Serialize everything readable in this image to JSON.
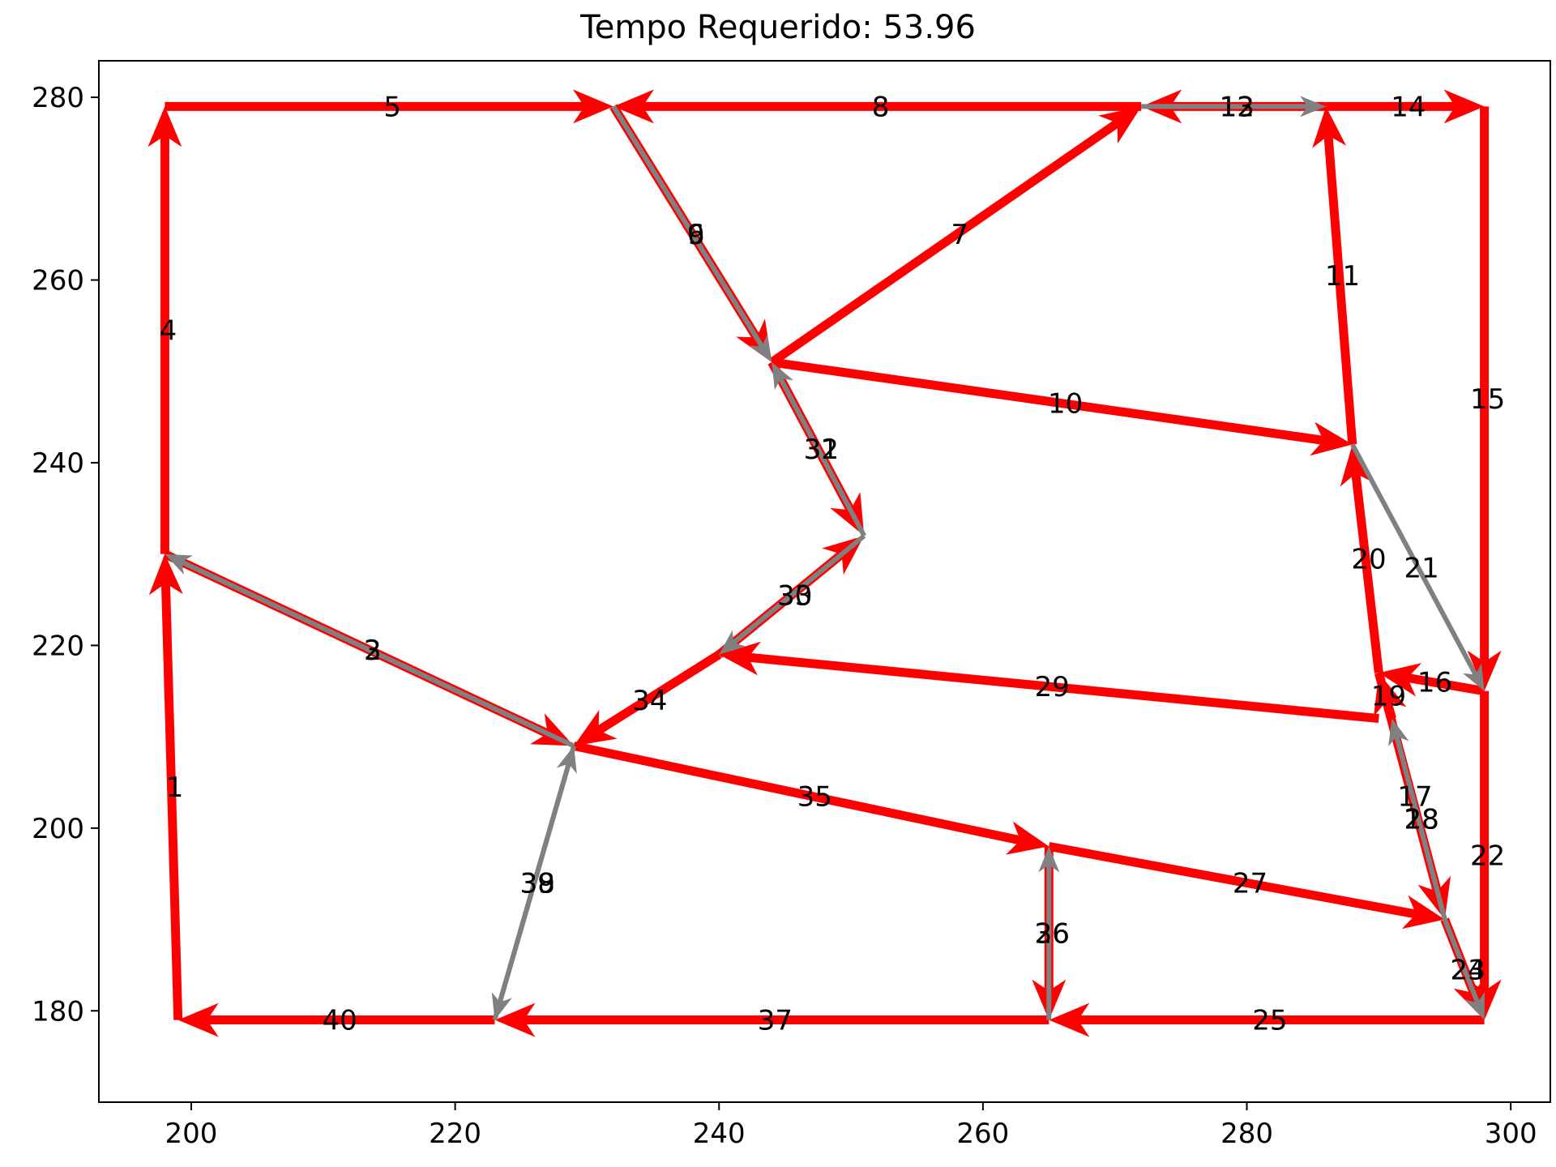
{
  "chart_data": {
    "type": "line",
    "title": "Tempo Requerido: 53.96",
    "xlabel": "",
    "ylabel": "",
    "xlim": [
      193,
      303
    ],
    "ylim": [
      170,
      284
    ],
    "x_ticks": [
      200,
      220,
      240,
      260,
      280,
      300
    ],
    "y_ticks": [
      180,
      200,
      220,
      240,
      260,
      280
    ],
    "grid": false,
    "colors": {
      "route": "#ff0000",
      "return": "#808080"
    },
    "segments": [
      {
        "label": "1",
        "kind": "route",
        "from": [
          199,
          179
        ],
        "to": [
          198,
          230
        ]
      },
      {
        "label": "2",
        "kind": "return",
        "from": [
          229,
          209
        ],
        "to": [
          198,
          230
        ]
      },
      {
        "label": "3",
        "kind": "route",
        "from": [
          198,
          230
        ],
        "to": [
          229,
          209
        ]
      },
      {
        "label": "4",
        "kind": "route",
        "from": [
          198,
          230
        ],
        "to": [
          198,
          279
        ]
      },
      {
        "label": "5",
        "kind": "route",
        "from": [
          198,
          279
        ],
        "to": [
          232,
          279
        ]
      },
      {
        "label": "6",
        "kind": "return",
        "from": [
          232,
          279
        ],
        "to": [
          244,
          251
        ]
      },
      {
        "label": "7",
        "kind": "route",
        "from": [
          244,
          251
        ],
        "to": [
          272,
          279
        ]
      },
      {
        "label": "8",
        "kind": "route",
        "from": [
          272,
          279
        ],
        "to": [
          232,
          279
        ]
      },
      {
        "label": "9",
        "kind": "route",
        "from": [
          232,
          279
        ],
        "to": [
          244,
          251
        ]
      },
      {
        "label": "10",
        "kind": "route",
        "from": [
          244,
          251
        ],
        "to": [
          288,
          242
        ]
      },
      {
        "label": "11",
        "kind": "route",
        "from": [
          288,
          242
        ],
        "to": [
          286,
          279
        ]
      },
      {
        "label": "12",
        "kind": "return",
        "from": [
          272,
          279
        ],
        "to": [
          286,
          279
        ]
      },
      {
        "label": "13",
        "kind": "route",
        "from": [
          286,
          279
        ],
        "to": [
          272,
          279
        ]
      },
      {
        "label": "14",
        "kind": "route",
        "from": [
          286,
          279
        ],
        "to": [
          298,
          279
        ]
      },
      {
        "label": "15",
        "kind": "route",
        "from": [
          298,
          279
        ],
        "to": [
          298,
          215
        ]
      },
      {
        "label": "16",
        "kind": "route",
        "from": [
          298,
          215
        ],
        "to": [
          290,
          217
        ]
      },
      {
        "label": "17",
        "kind": "route",
        "from": [
          290,
          217
        ],
        "to": [
          295,
          190
        ]
      },
      {
        "label": "18",
        "kind": "return",
        "from": [
          295,
          190
        ],
        "to": [
          291,
          212
        ]
      },
      {
        "label": "19",
        "kind": "route",
        "from": [
          291,
          212
        ],
        "to": [
          290,
          217
        ]
      },
      {
        "label": "20",
        "kind": "route",
        "from": [
          290,
          217
        ],
        "to": [
          288,
          242
        ]
      },
      {
        "label": "21",
        "kind": "return",
        "from": [
          288,
          242
        ],
        "to": [
          298,
          215
        ]
      },
      {
        "label": "22",
        "kind": "route",
        "from": [
          298,
          215
        ],
        "to": [
          298,
          179
        ]
      },
      {
        "label": "23",
        "kind": "return",
        "from": [
          295,
          190
        ],
        "to": [
          298,
          179
        ]
      },
      {
        "label": "24",
        "kind": "route",
        "from": [
          295,
          190
        ],
        "to": [
          298,
          179
        ]
      },
      {
        "label": "25",
        "kind": "route",
        "from": [
          298,
          179
        ],
        "to": [
          265,
          179
        ]
      },
      {
        "label": "26",
        "kind": "route",
        "from": [
          265,
          198
        ],
        "to": [
          265,
          179
        ]
      },
      {
        "label": "27",
        "kind": "route",
        "from": [
          265,
          198
        ],
        "to": [
          295,
          190
        ]
      },
      {
        "label": "28",
        "kind": "return",
        "from": [
          295,
          190
        ],
        "to": [
          291,
          212
        ]
      },
      {
        "label": "29",
        "kind": "route",
        "from": [
          290,
          212
        ],
        "to": [
          240,
          219
        ]
      },
      {
        "label": "30",
        "kind": "route",
        "from": [
          240,
          219
        ],
        "to": [
          251,
          232
        ]
      },
      {
        "label": "31",
        "kind": "return",
        "from": [
          251,
          232
        ],
        "to": [
          244,
          251
        ]
      },
      {
        "label": "32",
        "kind": "route",
        "from": [
          244,
          251
        ],
        "to": [
          251,
          232
        ]
      },
      {
        "label": "33",
        "kind": "return",
        "from": [
          251,
          232
        ],
        "to": [
          240,
          219
        ]
      },
      {
        "label": "34",
        "kind": "route",
        "from": [
          240,
          219
        ],
        "to": [
          229,
          209
        ]
      },
      {
        "label": "35",
        "kind": "route",
        "from": [
          229,
          209
        ],
        "to": [
          265,
          198
        ]
      },
      {
        "label": "36",
        "kind": "return",
        "from": [
          265,
          179
        ],
        "to": [
          265,
          198
        ]
      },
      {
        "label": "37",
        "kind": "route",
        "from": [
          265,
          179
        ],
        "to": [
          223,
          179
        ]
      },
      {
        "label": "38",
        "kind": "return",
        "from": [
          229,
          209
        ],
        "to": [
          223,
          179
        ]
      },
      {
        "label": "39",
        "kind": "return",
        "from": [
          223,
          179
        ],
        "to": [
          229,
          209
        ]
      },
      {
        "label": "40",
        "kind": "route",
        "from": [
          223,
          179
        ],
        "to": [
          199,
          179
        ]
      }
    ]
  }
}
